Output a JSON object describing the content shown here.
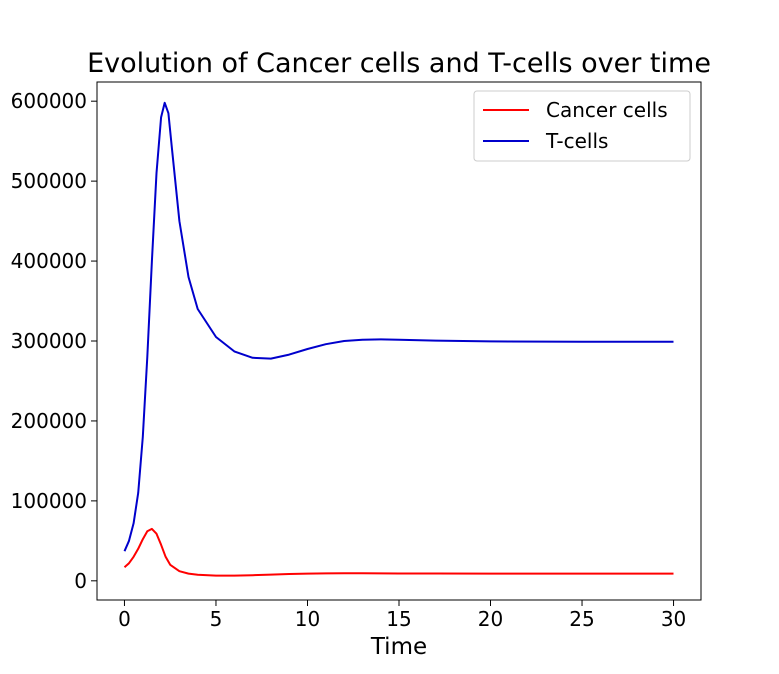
{
  "chart_data": {
    "type": "line",
    "title": "Evolution of Cancer cells and T-cells over time",
    "xlabel": "Time",
    "ylabel": "",
    "xlim": [
      -1.5,
      31.5
    ],
    "ylim": [
      -24000,
      624000
    ],
    "xticks": [
      0,
      5,
      10,
      15,
      20,
      25,
      30
    ],
    "xtick_labels": [
      "0",
      "5",
      "10",
      "15",
      "20",
      "25",
      "30"
    ],
    "yticks": [
      0,
      100000,
      200000,
      300000,
      400000,
      500000,
      600000
    ],
    "ytick_labels": [
      "0",
      "100000",
      "200000",
      "300000",
      "400000",
      "500000",
      "600000"
    ],
    "grid": false,
    "legend_position": "top-right",
    "series": [
      {
        "name": "Cancer cells",
        "color": "#ff0000",
        "x": [
          0,
          0.25,
          0.5,
          0.75,
          1.0,
          1.25,
          1.5,
          1.75,
          2.0,
          2.25,
          2.5,
          3.0,
          3.5,
          4.0,
          5.0,
          6.0,
          7.0,
          8.0,
          9.0,
          10.0,
          11.0,
          12.0,
          13.0,
          14.0,
          15.0,
          17.0,
          20.0,
          25.0,
          30.0
        ],
        "y": [
          17000,
          22000,
          30000,
          40000,
          52000,
          62000,
          65000,
          59000,
          45000,
          30000,
          20000,
          12000,
          9000,
          7500,
          6500,
          6500,
          7000,
          7800,
          8500,
          9000,
          9300,
          9400,
          9400,
          9300,
          9200,
          9100,
          9000,
          9000,
          9000
        ]
      },
      {
        "name": "T-cells",
        "color": "#0000cc",
        "x": [
          0,
          0.25,
          0.5,
          0.75,
          1.0,
          1.25,
          1.5,
          1.75,
          2.0,
          2.2,
          2.4,
          2.6,
          3.0,
          3.5,
          4.0,
          5.0,
          6.0,
          7.0,
          8.0,
          9.0,
          10.0,
          11.0,
          12.0,
          13.0,
          14.0,
          15.0,
          17.0,
          20.0,
          25.0,
          30.0
        ],
        "y": [
          37000,
          50000,
          72000,
          110000,
          180000,
          280000,
          400000,
          510000,
          580000,
          598000,
          585000,
          540000,
          450000,
          380000,
          340000,
          305000,
          287000,
          279000,
          278000,
          283000,
          290000,
          296000,
          300000,
          301500,
          302000,
          301500,
          300500,
          299500,
          299000,
          299000
        ]
      }
    ]
  }
}
